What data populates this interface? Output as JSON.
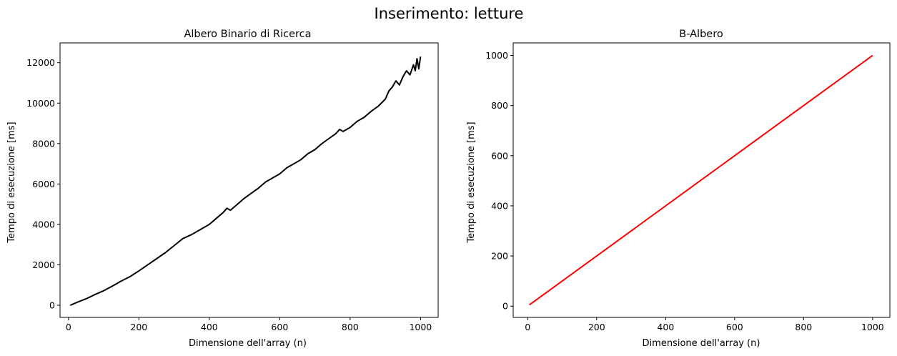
{
  "figure": {
    "suptitle": "Inserimento: letture"
  },
  "chart_data": [
    {
      "type": "line",
      "title": "Albero Binario di Ricerca",
      "xlabel": "Dimensione dell'array (n)",
      "ylabel": "Tempo di esecuzione [ms]",
      "xlim": [
        -24,
        1050
      ],
      "ylim": [
        -600,
        12980
      ],
      "xticks": [
        0,
        200,
        400,
        600,
        800,
        1000
      ],
      "yticks": [
        0,
        2000,
        4000,
        6000,
        8000,
        10000,
        12000
      ],
      "grid": false,
      "series": [
        {
          "color": "#000000",
          "x": [
            5,
            25,
            50,
            75,
            100,
            125,
            150,
            175,
            200,
            225,
            250,
            275,
            300,
            325,
            350,
            375,
            400,
            420,
            440,
            450,
            460,
            480,
            500,
            520,
            540,
            560,
            580,
            600,
            620,
            640,
            660,
            680,
            700,
            720,
            740,
            760,
            770,
            780,
            800,
            820,
            840,
            860,
            880,
            900,
            910,
            920,
            930,
            940,
            950,
            960,
            970,
            980,
            985,
            990,
            995,
            1000
          ],
          "y": [
            0,
            150,
            320,
            530,
            720,
            950,
            1200,
            1420,
            1700,
            2000,
            2300,
            2600,
            2950,
            3300,
            3500,
            3750,
            4000,
            4300,
            4600,
            4800,
            4700,
            5000,
            5300,
            5550,
            5800,
            6100,
            6300,
            6500,
            6800,
            7000,
            7200,
            7500,
            7700,
            8000,
            8250,
            8500,
            8700,
            8600,
            8800,
            9100,
            9300,
            9600,
            9850,
            10200,
            10600,
            10800,
            11100,
            10900,
            11300,
            11600,
            11400,
            11900,
            11600,
            12200,
            11700,
            12300
          ]
        }
      ]
    },
    {
      "type": "line",
      "title": "B-Albero",
      "xlabel": "Dimensione dell'array (n)",
      "ylabel": "Tempo di esecuzione [ms]",
      "xlim": [
        -42,
        1050
      ],
      "ylim": [
        -45,
        1050
      ],
      "xticks": [
        0,
        200,
        400,
        600,
        800,
        1000
      ],
      "yticks": [
        0,
        200,
        400,
        600,
        800,
        1000
      ],
      "grid": false,
      "series": [
        {
          "color": "#ff0000",
          "x": [
            5,
            1000
          ],
          "y": [
            5,
            1000
          ]
        }
      ]
    }
  ]
}
